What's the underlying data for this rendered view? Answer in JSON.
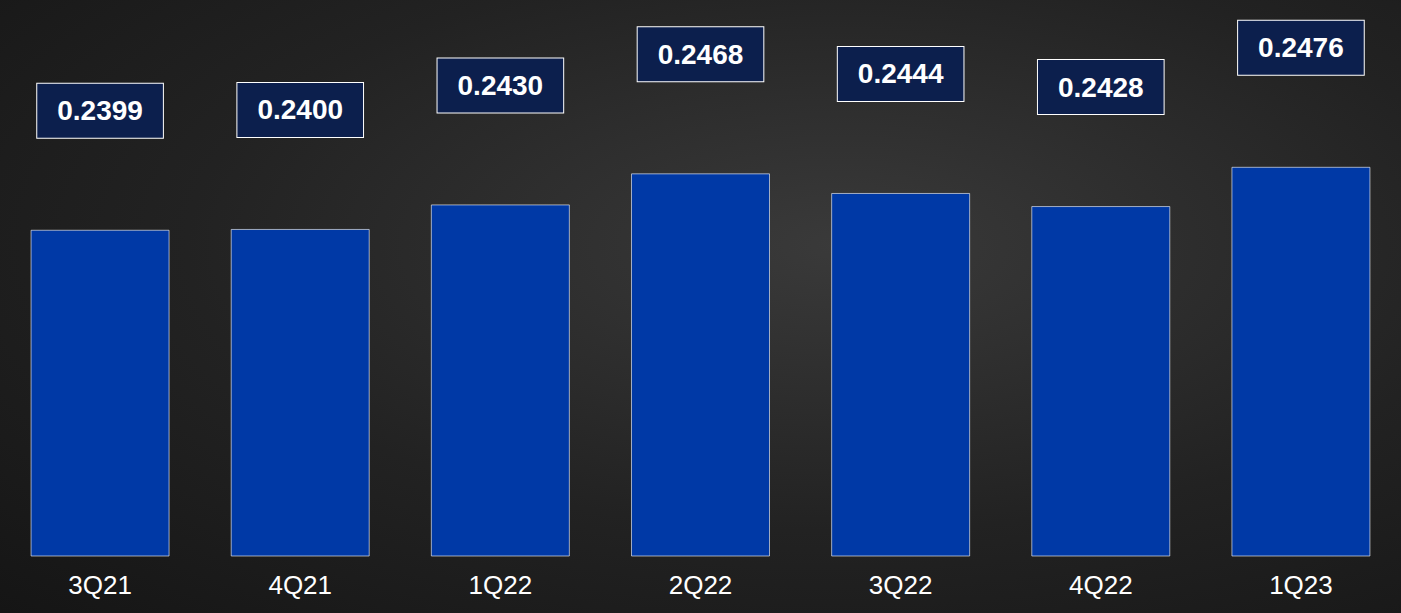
{
  "chart_data": {
    "type": "bar",
    "categories": [
      "3Q21",
      "4Q21",
      "1Q22",
      "2Q22",
      "3Q22",
      "4Q22",
      "1Q23"
    ],
    "values": [
      0.2399,
      0.24,
      0.243,
      0.2468,
      0.2444,
      0.2428,
      0.2476
    ],
    "value_labels": [
      "0.2399",
      "0.2400",
      "0.2430",
      "0.2468",
      "0.2444",
      "0.2428",
      "0.2476"
    ],
    "color": "#0039a6",
    "ylim": [
      0.2,
      0.268
    ],
    "yticks": [
      0.2,
      0.268
    ],
    "data_labels": true,
    "tick_labels": "x",
    "grid": false
  }
}
